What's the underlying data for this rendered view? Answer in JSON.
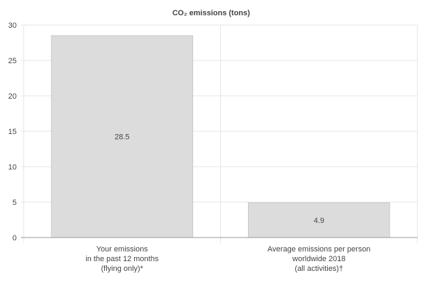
{
  "chart_data": {
    "type": "bar",
    "title": "CO₂ emissions (tons)",
    "categories": [
      [
        "Your emissions",
        "in the past 12 months",
        "(flying only)*"
      ],
      [
        "Average emissions per person",
        "worldwide 2018",
        "(all activities)†"
      ]
    ],
    "values": [
      28.5,
      4.9
    ],
    "value_labels": [
      "28.5",
      "4.9"
    ],
    "ylim": [
      0,
      30
    ],
    "yticks": [
      0,
      5,
      10,
      15,
      20,
      25,
      30
    ],
    "xlabel": "",
    "ylabel": "",
    "grid": true,
    "legend": "none",
    "colors": {
      "bar_fill": "#dcdcdc",
      "bar_stroke": "#c8c8c8",
      "grid": "#e5e5e5",
      "axis": "#999999",
      "text": "#444444"
    }
  }
}
